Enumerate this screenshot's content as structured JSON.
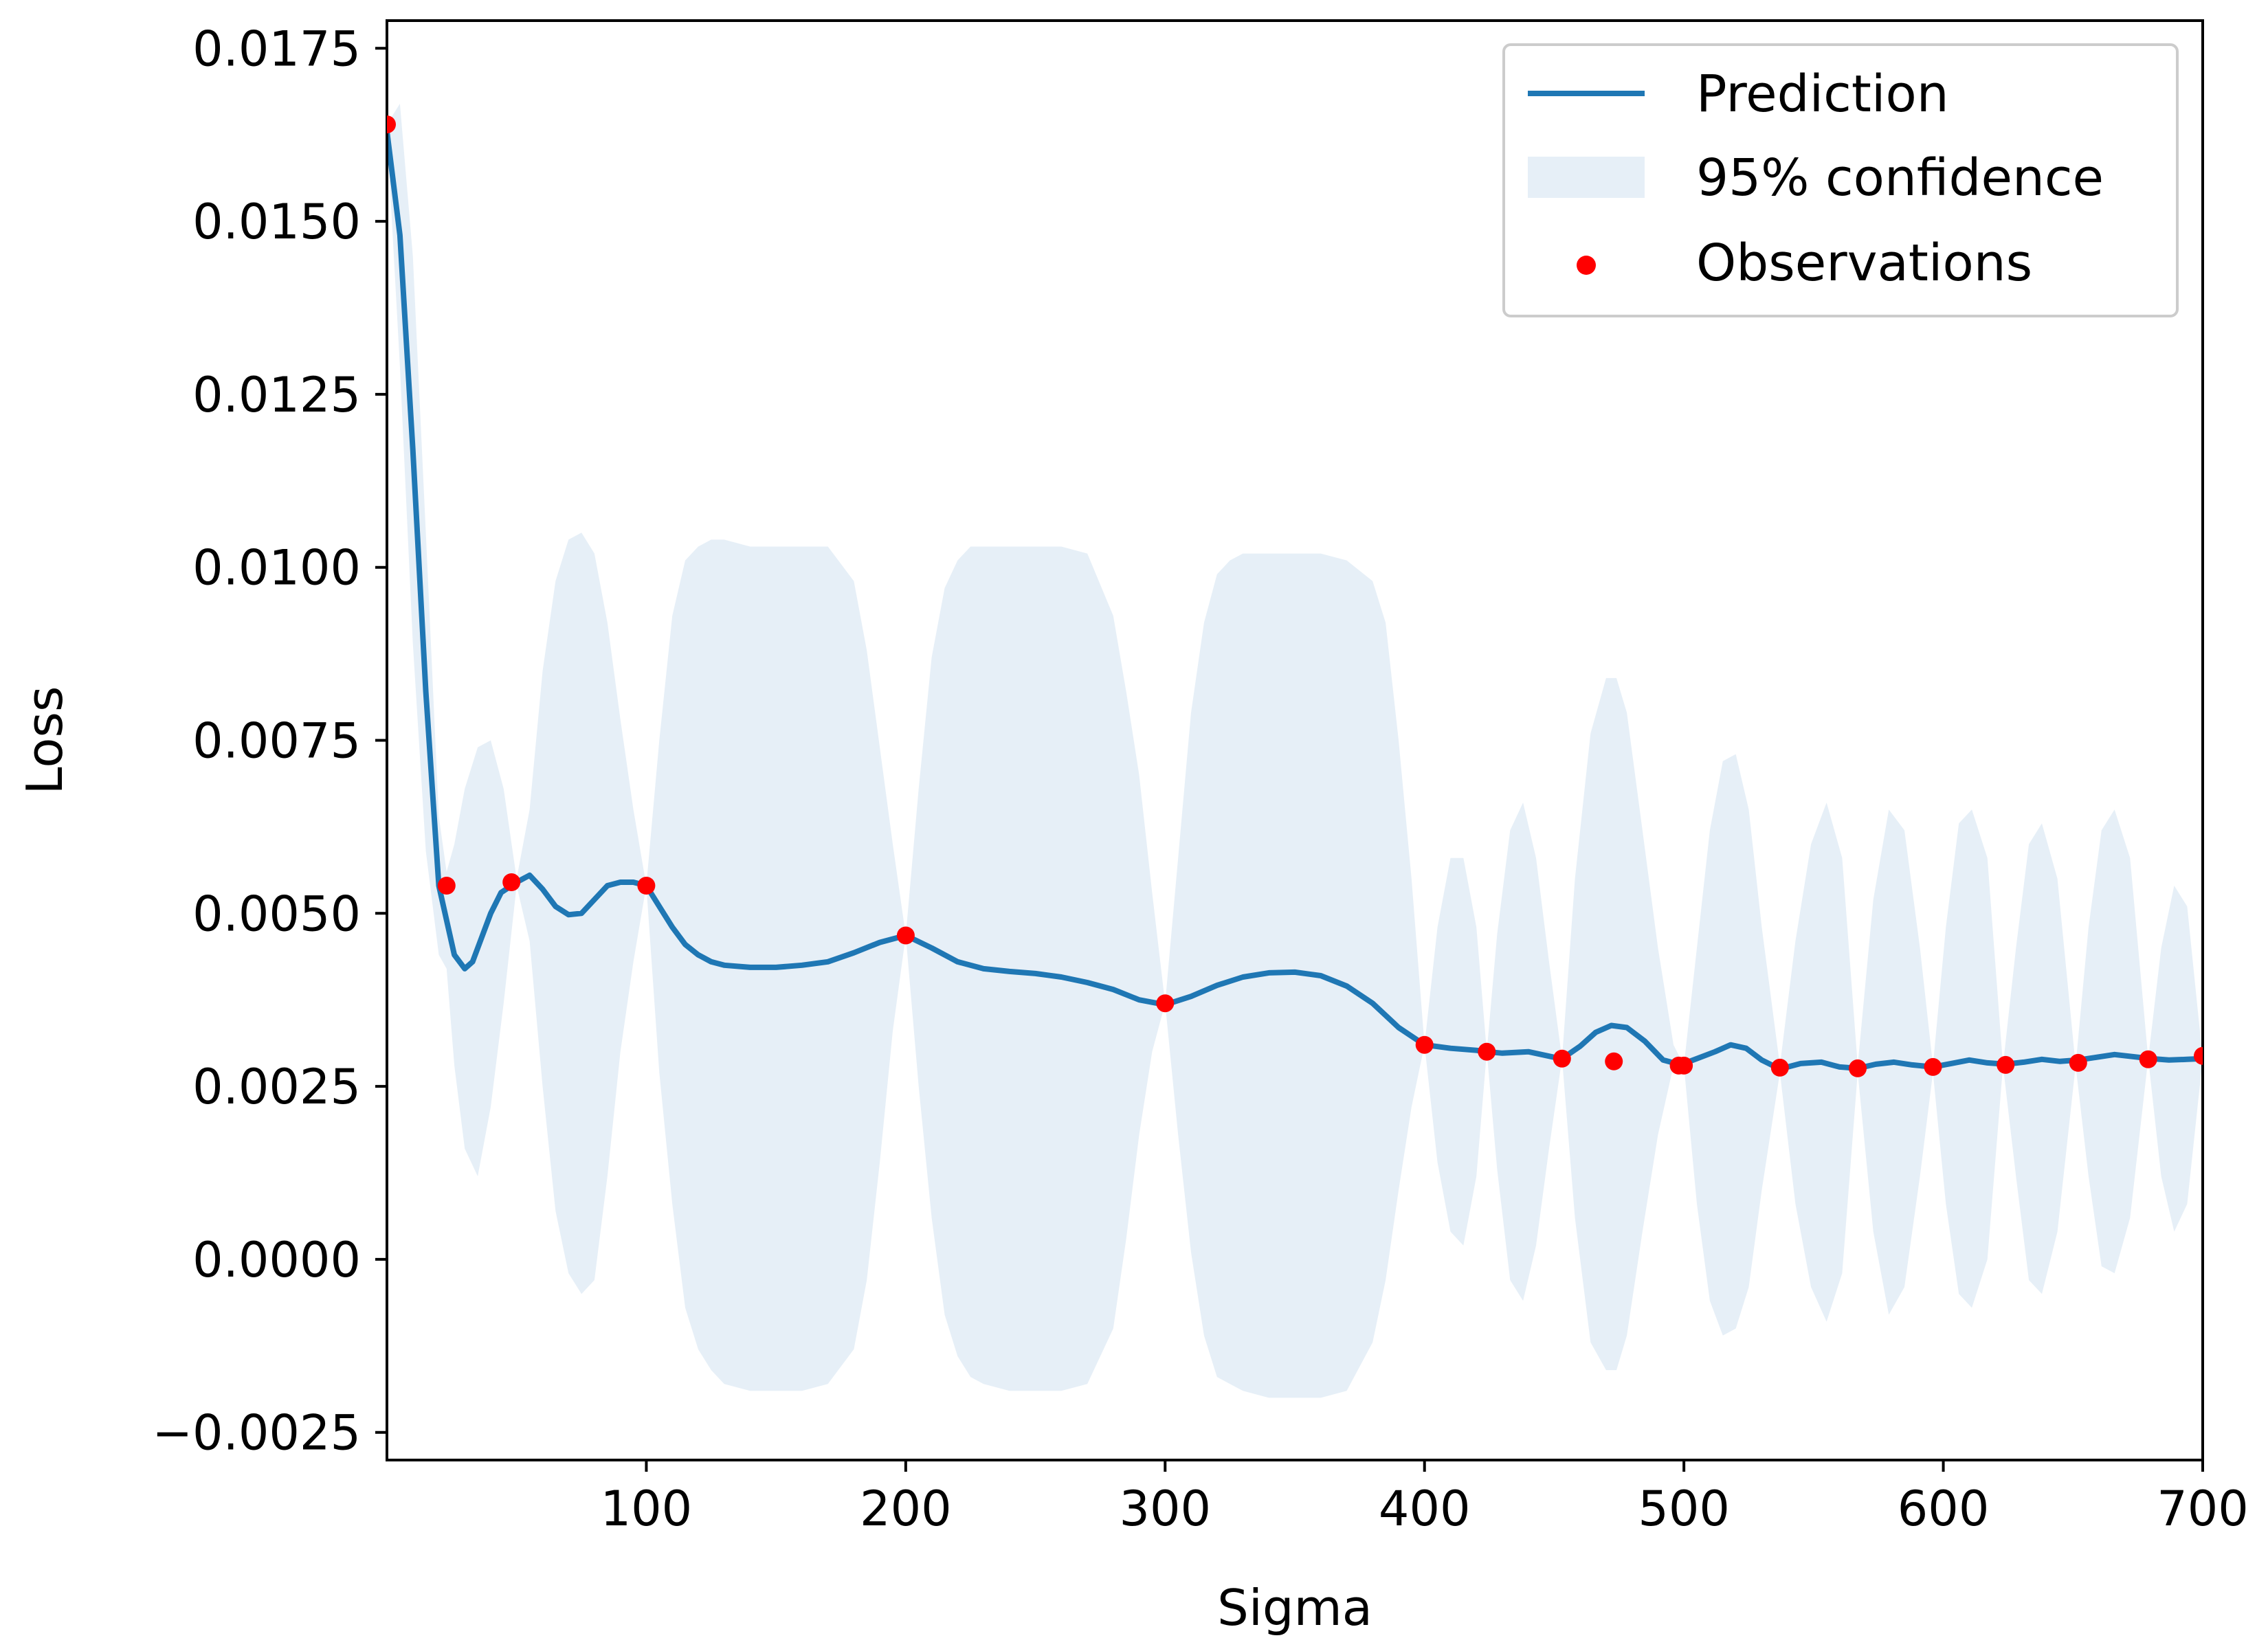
{
  "chart_data": {
    "type": "line",
    "xlabel": "Sigma",
    "ylabel": "Loss",
    "xlim": [
      0,
      700
    ],
    "ylim": [
      -0.0029,
      0.0179
    ],
    "x_ticks": [
      100,
      200,
      300,
      400,
      500,
      600,
      700
    ],
    "x_tick_labels": [
      "100",
      "200",
      "300",
      "400",
      "500",
      "600",
      "700"
    ],
    "y_ticks": [
      -0.0025,
      0.0,
      0.0025,
      0.005,
      0.0075,
      0.01,
      0.0125,
      0.015,
      0.0175
    ],
    "y_tick_labels": [
      "−0.0025",
      "0.0000",
      "0.0025",
      "0.0050",
      "0.0075",
      "0.0100",
      "0.0125",
      "0.0150",
      "0.0175"
    ],
    "grid": false,
    "legend": {
      "placement": "top-right",
      "entries": [
        "Prediction",
        "95% confidence",
        "Observations"
      ]
    },
    "colors": {
      "prediction": "#1f77b4",
      "confidence": "#e6eff7",
      "observations": "#ff0000"
    },
    "series": [
      {
        "name": "Prediction",
        "x": [
          0,
          5,
          10,
          15,
          20,
          23,
          26,
          30,
          33,
          36,
          40,
          44,
          48,
          50,
          55,
          60,
          65,
          70,
          75,
          80,
          85,
          90,
          95,
          100,
          105,
          110,
          115,
          120,
          125,
          130,
          140,
          150,
          160,
          170,
          180,
          190,
          200,
          210,
          220,
          230,
          240,
          250,
          260,
          270,
          280,
          290,
          300,
          310,
          320,
          330,
          340,
          350,
          360,
          370,
          380,
          390,
          400,
          410,
          420,
          424,
          430,
          440,
          450,
          453,
          460,
          466,
          472,
          478,
          485,
          492,
          498,
          500,
          505,
          512,
          518,
          524,
          530,
          537,
          545,
          553,
          560,
          567,
          574,
          581,
          588,
          596,
          603,
          610,
          617,
          624,
          631,
          638,
          645,
          652,
          659,
          666,
          673,
          680,
          687,
          694,
          700
        ],
        "y": [
          0.0163,
          0.0148,
          0.0117,
          0.0082,
          0.0054,
          0.0049,
          0.0044,
          0.0042,
          0.0043,
          0.0046,
          0.005,
          0.0053,
          0.0054,
          0.00545,
          0.00555,
          0.00535,
          0.0051,
          0.00498,
          0.005,
          0.0052,
          0.0054,
          0.00545,
          0.00545,
          0.0054,
          0.0051,
          0.0048,
          0.00455,
          0.0044,
          0.0043,
          0.00425,
          0.00422,
          0.00422,
          0.00425,
          0.0043,
          0.00443,
          0.00458,
          0.00468,
          0.0045,
          0.0043,
          0.0042,
          0.00416,
          0.00413,
          0.00408,
          0.004,
          0.0039,
          0.00375,
          0.00368,
          0.0038,
          0.00396,
          0.00408,
          0.00414,
          0.00415,
          0.0041,
          0.00395,
          0.0037,
          0.00335,
          0.0031,
          0.00305,
          0.00302,
          0.003,
          0.00298,
          0.003,
          0.00292,
          0.0029,
          0.00308,
          0.00328,
          0.00338,
          0.00335,
          0.00315,
          0.00288,
          0.00282,
          0.00283,
          0.0029,
          0.003,
          0.0031,
          0.00305,
          0.00288,
          0.00275,
          0.00283,
          0.00285,
          0.00278,
          0.00276,
          0.00282,
          0.00285,
          0.00281,
          0.00278,
          0.00283,
          0.00288,
          0.00284,
          0.00282,
          0.00285,
          0.00289,
          0.00286,
          0.00288,
          0.00292,
          0.00296,
          0.00293,
          0.0029,
          0.00288,
          0.00289,
          0.0029
        ]
      },
      {
        "name": "95% confidence",
        "x": [
          0,
          5,
          10,
          15,
          20,
          23,
          26,
          30,
          35,
          40,
          45,
          50,
          55,
          60,
          65,
          70,
          75,
          80,
          85,
          90,
          95,
          100,
          105,
          110,
          115,
          120,
          125,
          130,
          140,
          150,
          160,
          170,
          180,
          185,
          190,
          195,
          200,
          205,
          210,
          215,
          220,
          225,
          230,
          240,
          250,
          260,
          270,
          280,
          285,
          290,
          295,
          300,
          305,
          310,
          315,
          320,
          325,
          330,
          340,
          350,
          360,
          370,
          380,
          385,
          390,
          395,
          400,
          405,
          410,
          415,
          420,
          424,
          428,
          433,
          438,
          443,
          448,
          453,
          458,
          464,
          470,
          474,
          478,
          484,
          490,
          496,
          500,
          505,
          510,
          515,
          520,
          525,
          530,
          537,
          543,
          549,
          555,
          561,
          567,
          573,
          579,
          585,
          591,
          596,
          601,
          606,
          611,
          617,
          623,
          628,
          633,
          638,
          644,
          651,
          656,
          661,
          666,
          672,
          679,
          684,
          689,
          694,
          700
        ],
        "upper": [
          0.0164,
          0.0167,
          0.0145,
          0.0105,
          0.0064,
          0.0056,
          0.006,
          0.0068,
          0.0074,
          0.0075,
          0.0068,
          0.0055,
          0.0065,
          0.0085,
          0.0098,
          0.0104,
          0.0105,
          0.0102,
          0.0092,
          0.0078,
          0.0065,
          0.0054,
          0.0075,
          0.0093,
          0.0101,
          0.0103,
          0.0104,
          0.0104,
          0.0103,
          0.0103,
          0.0103,
          0.0103,
          0.0098,
          0.0088,
          0.0074,
          0.006,
          0.00468,
          0.0068,
          0.0087,
          0.0097,
          0.0101,
          0.0103,
          0.0103,
          0.0103,
          0.0103,
          0.0103,
          0.0102,
          0.0093,
          0.0082,
          0.007,
          0.0053,
          0.0037,
          0.0058,
          0.0079,
          0.0092,
          0.0099,
          0.0101,
          0.0102,
          0.0102,
          0.0102,
          0.0102,
          0.0101,
          0.0098,
          0.0092,
          0.0075,
          0.0055,
          0.0031,
          0.0048,
          0.0058,
          0.0058,
          0.0048,
          0.003,
          0.0047,
          0.0062,
          0.0066,
          0.0058,
          0.0043,
          0.0029,
          0.0055,
          0.0076,
          0.0084,
          0.0084,
          0.0079,
          0.0062,
          0.0045,
          0.0031,
          0.0028,
          0.0045,
          0.0062,
          0.0072,
          0.0073,
          0.0065,
          0.0048,
          0.0028,
          0.0046,
          0.006,
          0.0066,
          0.0058,
          0.0028,
          0.0052,
          0.0065,
          0.0062,
          0.0045,
          0.0028,
          0.0048,
          0.0063,
          0.0065,
          0.0058,
          0.0028,
          0.0045,
          0.006,
          0.0063,
          0.0055,
          0.0028,
          0.0048,
          0.0062,
          0.0065,
          0.0058,
          0.0029,
          0.0045,
          0.0054,
          0.0051,
          0.0029
        ],
        "lower": [
          0.0163,
          0.0129,
          0.0089,
          0.0059,
          0.0044,
          0.0042,
          0.0028,
          0.0016,
          0.0012,
          0.0022,
          0.0037,
          0.0054,
          0.0046,
          0.0025,
          0.0007,
          -0.0002,
          -0.0005,
          -0.0003,
          0.0012,
          0.003,
          0.0043,
          0.0054,
          0.0027,
          0.0008,
          -0.0007,
          -0.0013,
          -0.0016,
          -0.0018,
          -0.0019,
          -0.0019,
          -0.0019,
          -0.0018,
          -0.0013,
          -0.0003,
          0.0014,
          0.0033,
          0.00468,
          0.0025,
          0.0006,
          -0.0008,
          -0.0014,
          -0.0017,
          -0.0018,
          -0.0019,
          -0.0019,
          -0.0019,
          -0.0018,
          -0.001,
          0.0003,
          0.0018,
          0.003,
          0.0037,
          0.0018,
          0.0001,
          -0.0011,
          -0.0017,
          -0.0018,
          -0.0019,
          -0.002,
          -0.002,
          -0.002,
          -0.0019,
          -0.0012,
          -0.0003,
          0.001,
          0.0022,
          0.0031,
          0.0014,
          0.0004,
          0.0002,
          0.0012,
          0.003,
          0.0013,
          -0.0003,
          -0.0006,
          0.0002,
          0.0016,
          0.0029,
          0.0006,
          -0.0012,
          -0.0016,
          -0.0016,
          -0.0011,
          0.0004,
          0.0018,
          0.0028,
          0.0028,
          0.0008,
          -0.0006,
          -0.0011,
          -0.001,
          -0.0004,
          0.001,
          0.0027,
          0.0008,
          -0.0004,
          -0.0009,
          -0.0002,
          0.0027,
          0.0004,
          -0.0008,
          -0.0004,
          0.0012,
          0.0027,
          0.0008,
          -0.0005,
          -0.0007,
          0.0,
          0.0028,
          0.0012,
          -0.0003,
          -0.0005,
          0.0004,
          0.0028,
          0.0012,
          -0.0001,
          -0.0002,
          0.0006,
          0.0029,
          0.0012,
          0.0004,
          0.0008,
          0.0029
        ]
      },
      {
        "name": "Observations",
        "x": [
          0,
          23,
          48,
          100,
          200,
          300,
          400,
          424,
          453,
          473,
          498,
          500,
          537,
          567,
          596,
          624,
          652,
          679,
          700
        ],
        "y": [
          0.0164,
          0.0054,
          0.00545,
          0.0054,
          0.00468,
          0.0037,
          0.0031,
          0.003,
          0.0029,
          0.00286,
          0.0028,
          0.0028,
          0.00277,
          0.00276,
          0.00278,
          0.00281,
          0.00284,
          0.00289,
          0.00294
        ]
      }
    ]
  }
}
